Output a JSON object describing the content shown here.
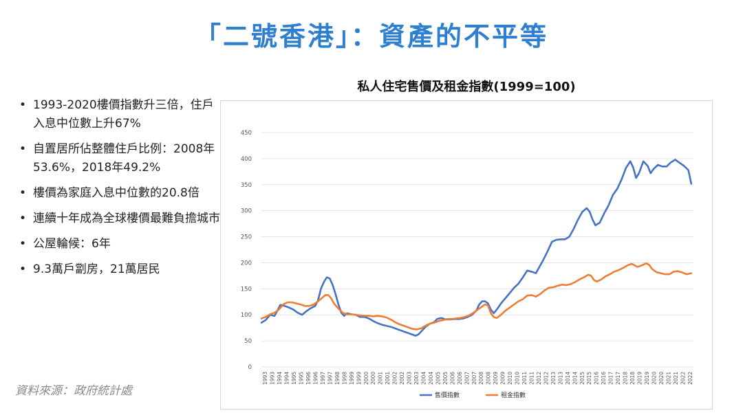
{
  "slide": {
    "title": "「二號香港」：資產的不平等",
    "bullets": [
      "1993-2020樓價指數升三倍，住戶入息中位數上升67%",
      "自置居所佔整體住戶比例：2008年53.6%，2018年49.2%",
      "樓價為家庭入息中位數的20.8倍",
      "連續十年成為全球樓價最難負擔城市",
      "公屋輪候：6年",
      "9.3萬戶劏房，21萬居民"
    ],
    "bullet_symbol": "•",
    "source": "資料來源：政府統計處"
  },
  "chart_data": {
    "type": "line",
    "title": "私人住宅售價及租金指數(1999=100)",
    "xlabel": "",
    "ylabel": "",
    "ylim": [
      0,
      450
    ],
    "yticks": [
      0,
      50,
      100,
      150,
      200,
      250,
      300,
      350,
      400,
      450
    ],
    "xlim": [
      1993,
      2022.75
    ],
    "xticks": [
      "1993",
      "1993",
      "1994",
      "1994",
      "1995",
      "1995",
      "1996",
      "1996",
      "1997",
      "1997",
      "1998",
      "1998",
      "1999",
      "1999",
      "2000",
      "2000",
      "2001",
      "2001",
      "2002",
      "2002",
      "2003",
      "2003",
      "2004",
      "2004",
      "2005",
      "2005",
      "2006",
      "2006",
      "2007",
      "2007",
      "2008",
      "2008",
      "2009",
      "2009",
      "2010",
      "2010",
      "2011",
      "2011",
      "2012",
      "2012",
      "2013",
      "2013",
      "2014",
      "2014",
      "2015",
      "2015",
      "2016",
      "2016",
      "2017",
      "2017",
      "2018",
      "2018",
      "2019",
      "2019",
      "2020",
      "2020",
      "2021",
      "2021",
      "2022",
      "2022"
    ],
    "grid": true,
    "legend_position": "bottom-center",
    "series": [
      {
        "name": "售價指數",
        "color": "#4472c4",
        "points": [
          [
            1993.0,
            85
          ],
          [
            1993.3,
            90
          ],
          [
            1993.6,
            100
          ],
          [
            1993.9,
            98
          ],
          [
            1994.1,
            108
          ],
          [
            1994.3,
            119
          ],
          [
            1994.6,
            117
          ],
          [
            1994.9,
            114
          ],
          [
            1995.2,
            110
          ],
          [
            1995.5,
            104
          ],
          [
            1995.8,
            100
          ],
          [
            1996.1,
            107
          ],
          [
            1996.4,
            113
          ],
          [
            1996.7,
            117
          ],
          [
            1996.9,
            128
          ],
          [
            1997.1,
            150
          ],
          [
            1997.3,
            163
          ],
          [
            1997.5,
            172
          ],
          [
            1997.7,
            170
          ],
          [
            1997.9,
            158
          ],
          [
            1998.1,
            140
          ],
          [
            1998.3,
            120
          ],
          [
            1998.5,
            104
          ],
          [
            1998.7,
            98
          ],
          [
            1998.9,
            103
          ],
          [
            1999.2,
            101
          ],
          [
            1999.5,
            100
          ],
          [
            1999.8,
            96
          ],
          [
            2000.1,
            96
          ],
          [
            2000.4,
            93
          ],
          [
            2000.7,
            88
          ],
          [
            2001.0,
            84
          ],
          [
            2001.3,
            81
          ],
          [
            2001.6,
            79
          ],
          [
            2001.9,
            77
          ],
          [
            2002.2,
            74
          ],
          [
            2002.5,
            71
          ],
          [
            2002.8,
            68
          ],
          [
            2003.1,
            65
          ],
          [
            2003.4,
            62
          ],
          [
            2003.6,
            60
          ],
          [
            2003.8,
            62
          ],
          [
            2004.0,
            68
          ],
          [
            2004.3,
            77
          ],
          [
            2004.6,
            83
          ],
          [
            2004.9,
            86
          ],
          [
            2005.1,
            92
          ],
          [
            2005.4,
            94
          ],
          [
            2005.7,
            91
          ],
          [
            2006.0,
            91
          ],
          [
            2006.3,
            92
          ],
          [
            2006.6,
            92
          ],
          [
            2006.9,
            93
          ],
          [
            2007.2,
            96
          ],
          [
            2007.5,
            100
          ],
          [
            2007.8,
            108
          ],
          [
            2008.0,
            120
          ],
          [
            2008.2,
            126
          ],
          [
            2008.4,
            126
          ],
          [
            2008.6,
            122
          ],
          [
            2008.8,
            110
          ],
          [
            2009.0,
            103
          ],
          [
            2009.2,
            110
          ],
          [
            2009.5,
            122
          ],
          [
            2009.8,
            132
          ],
          [
            2010.1,
            142
          ],
          [
            2010.4,
            152
          ],
          [
            2010.7,
            160
          ],
          [
            2011.0,
            172
          ],
          [
            2011.3,
            185
          ],
          [
            2011.6,
            183
          ],
          [
            2011.9,
            180
          ],
          [
            2012.1,
            190
          ],
          [
            2012.4,
            205
          ],
          [
            2012.7,
            222
          ],
          [
            2013.0,
            240
          ],
          [
            2013.3,
            244
          ],
          [
            2013.6,
            245
          ],
          [
            2013.9,
            245
          ],
          [
            2014.2,
            250
          ],
          [
            2014.5,
            265
          ],
          [
            2014.8,
            283
          ],
          [
            2015.1,
            298
          ],
          [
            2015.4,
            305
          ],
          [
            2015.6,
            298
          ],
          [
            2015.8,
            283
          ],
          [
            2016.0,
            272
          ],
          [
            2016.3,
            277
          ],
          [
            2016.6,
            295
          ],
          [
            2016.9,
            310
          ],
          [
            2017.2,
            330
          ],
          [
            2017.5,
            342
          ],
          [
            2017.8,
            360
          ],
          [
            2018.1,
            382
          ],
          [
            2018.4,
            395
          ],
          [
            2018.6,
            383
          ],
          [
            2018.8,
            363
          ],
          [
            2019.0,
            372
          ],
          [
            2019.3,
            395
          ],
          [
            2019.6,
            386
          ],
          [
            2019.8,
            372
          ],
          [
            2020.0,
            380
          ],
          [
            2020.3,
            388
          ],
          [
            2020.6,
            385
          ],
          [
            2020.9,
            385
          ],
          [
            2021.2,
            393
          ],
          [
            2021.5,
            398
          ],
          [
            2021.8,
            392
          ],
          [
            2022.1,
            386
          ],
          [
            2022.4,
            378
          ],
          [
            2022.6,
            352
          ]
        ]
      },
      {
        "name": "租金指數",
        "color": "#ed7d31",
        "points": [
          [
            1993.0,
            93
          ],
          [
            1993.3,
            96
          ],
          [
            1993.6,
            101
          ],
          [
            1993.9,
            104
          ],
          [
            1994.2,
            110
          ],
          [
            1994.5,
            120
          ],
          [
            1994.8,
            124
          ],
          [
            1995.1,
            124
          ],
          [
            1995.4,
            122
          ],
          [
            1995.7,
            120
          ],
          [
            1996.0,
            117
          ],
          [
            1996.3,
            117
          ],
          [
            1996.6,
            120
          ],
          [
            1996.9,
            126
          ],
          [
            1997.2,
            133
          ],
          [
            1997.4,
            138
          ],
          [
            1997.6,
            138
          ],
          [
            1997.8,
            132
          ],
          [
            1998.0,
            122
          ],
          [
            1998.3,
            112
          ],
          [
            1998.6,
            104
          ],
          [
            1998.9,
            101
          ],
          [
            1999.2,
            101
          ],
          [
            1999.5,
            100
          ],
          [
            1999.8,
            99
          ],
          [
            2000.1,
            98
          ],
          [
            2000.4,
            98
          ],
          [
            2000.7,
            97
          ],
          [
            2001.0,
            98
          ],
          [
            2001.3,
            97
          ],
          [
            2001.6,
            95
          ],
          [
            2001.9,
            91
          ],
          [
            2002.2,
            86
          ],
          [
            2002.5,
            82
          ],
          [
            2002.8,
            79
          ],
          [
            2003.1,
            76
          ],
          [
            2003.4,
            73
          ],
          [
            2003.7,
            72
          ],
          [
            2004.0,
            74
          ],
          [
            2004.3,
            79
          ],
          [
            2004.6,
            83
          ],
          [
            2004.9,
            85
          ],
          [
            2005.2,
            88
          ],
          [
            2005.5,
            90
          ],
          [
            2005.8,
            92
          ],
          [
            2006.1,
            92
          ],
          [
            2006.4,
            93
          ],
          [
            2006.7,
            94
          ],
          [
            2007.0,
            96
          ],
          [
            2007.3,
            99
          ],
          [
            2007.6,
            104
          ],
          [
            2007.9,
            110
          ],
          [
            2008.2,
            116
          ],
          [
            2008.4,
            120
          ],
          [
            2008.6,
            118
          ],
          [
            2008.8,
            103
          ],
          [
            2009.0,
            96
          ],
          [
            2009.2,
            94
          ],
          [
            2009.5,
            100
          ],
          [
            2009.8,
            108
          ],
          [
            2010.1,
            114
          ],
          [
            2010.4,
            120
          ],
          [
            2010.7,
            126
          ],
          [
            2011.0,
            130
          ],
          [
            2011.3,
            137
          ],
          [
            2011.6,
            138
          ],
          [
            2011.9,
            135
          ],
          [
            2012.2,
            140
          ],
          [
            2012.5,
            147
          ],
          [
            2012.8,
            152
          ],
          [
            2013.1,
            153
          ],
          [
            2013.4,
            156
          ],
          [
            2013.7,
            158
          ],
          [
            2014.0,
            157
          ],
          [
            2014.3,
            159
          ],
          [
            2014.6,
            163
          ],
          [
            2014.9,
            168
          ],
          [
            2015.2,
            172
          ],
          [
            2015.5,
            177
          ],
          [
            2015.7,
            175
          ],
          [
            2015.9,
            167
          ],
          [
            2016.1,
            164
          ],
          [
            2016.4,
            168
          ],
          [
            2016.7,
            174
          ],
          [
            2017.0,
            178
          ],
          [
            2017.3,
            183
          ],
          [
            2017.6,
            186
          ],
          [
            2017.9,
            190
          ],
          [
            2018.2,
            195
          ],
          [
            2018.5,
            198
          ],
          [
            2018.7,
            195
          ],
          [
            2018.9,
            192
          ],
          [
            2019.2,
            195
          ],
          [
            2019.5,
            199
          ],
          [
            2019.7,
            196
          ],
          [
            2019.9,
            188
          ],
          [
            2020.2,
            182
          ],
          [
            2020.5,
            180
          ],
          [
            2020.8,
            178
          ],
          [
            2021.1,
            178
          ],
          [
            2021.4,
            183
          ],
          [
            2021.7,
            184
          ],
          [
            2022.0,
            181
          ],
          [
            2022.3,
            178
          ],
          [
            2022.6,
            180
          ]
        ]
      }
    ]
  }
}
